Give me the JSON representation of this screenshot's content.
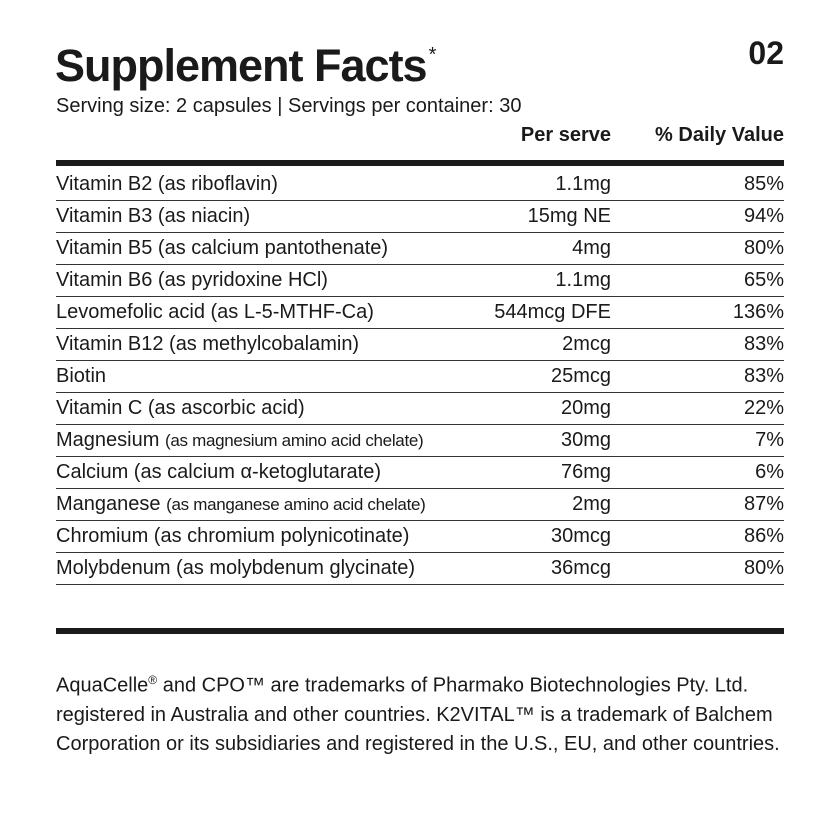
{
  "title": "Supplement Facts",
  "title_mark": "*",
  "page_number": "02",
  "serving": "Serving size: 2 capsules | Servings per container: 30",
  "headers": {
    "per_serve": "Per serve",
    "daily_value": "% Daily Value"
  },
  "rows": [
    {
      "name": "Vitamin B2 (as riboflavin)",
      "sub": "",
      "amount": "1.1mg",
      "dv": "85%"
    },
    {
      "name": "Vitamin B3 (as niacin)",
      "sub": "",
      "amount": "15mg NE",
      "dv": "94%"
    },
    {
      "name": "Vitamin B5 (as calcium pantothenate)",
      "sub": "",
      "amount": "4mg",
      "dv": "80%"
    },
    {
      "name": "Vitamin B6 (as pyridoxine HCl)",
      "sub": "",
      "amount": "1.1mg",
      "dv": "65%"
    },
    {
      "name": "Levomefolic acid (as L-5-MTHF-Ca)",
      "sub": "",
      "amount": "544mcg DFE",
      "dv": "136%"
    },
    {
      "name": "Vitamin B12 (as methylcobalamin)",
      "sub": "",
      "amount": "2mcg",
      "dv": "83%"
    },
    {
      "name": "Biotin",
      "sub": "",
      "amount": "25mcg",
      "dv": "83%"
    },
    {
      "name": "Vitamin C (as ascorbic acid)",
      "sub": "",
      "amount": "20mg",
      "dv": "22%"
    },
    {
      "name": "Magnesium",
      "sub": "(as magnesium amino acid chelate)",
      "amount": "30mg",
      "dv": "7%"
    },
    {
      "name": "Calcium (as calcium α-ketoglutarate)",
      "sub": "",
      "amount": "76mg",
      "dv": "6%"
    },
    {
      "name": "Manganese",
      "sub": "(as manganese amino acid chelate)",
      "amount": "2mg",
      "dv": "87%"
    },
    {
      "name": "Chromium (as chromium polynicotinate)",
      "sub": "",
      "amount": "30mcg",
      "dv": "86%"
    },
    {
      "name": "Molybdenum (as molybdenum glycinate)",
      "sub": "",
      "amount": "36mcg",
      "dv": "80%"
    }
  ],
  "footnote": "AquaCelle® and CPO™ are trademarks of Pharmako Biotechnologies Pty. Ltd. registered in Australia and other countries. K2VITAL™ is a trademark of Balchem Corporation or its subsidiaries and registered in the U.S., EU, and other countries."
}
